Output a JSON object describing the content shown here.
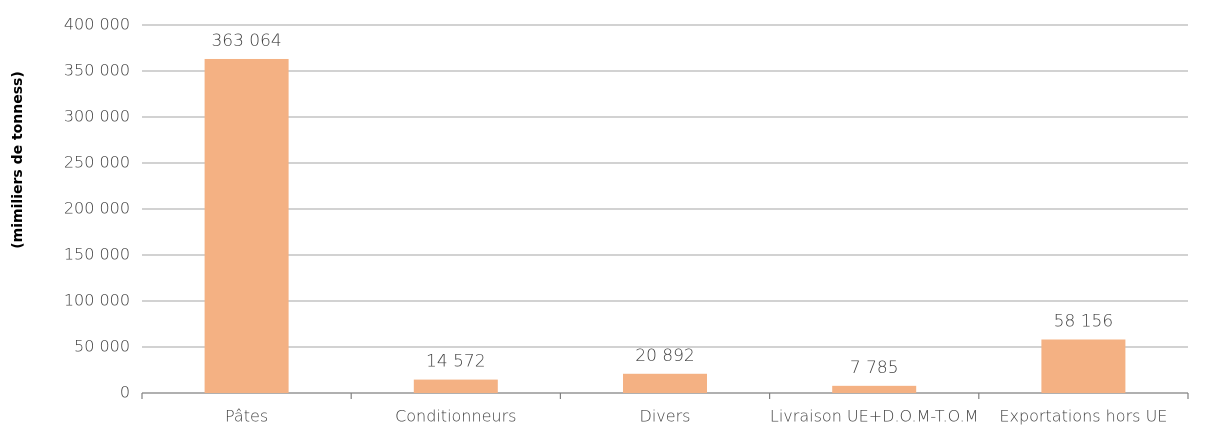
{
  "chart_data": {
    "type": "bar",
    "y_axis_label": "(mimiliers de tonness)",
    "categories": [
      "Pâtes",
      "Conditionneurs",
      "Divers",
      "Livraison UE+D.O.M-T.O.M",
      "Exportations hors UE"
    ],
    "values": [
      363064,
      14572,
      20892,
      7785,
      58156
    ],
    "value_labels": [
      "363 064",
      "14 572",
      "20 892",
      "7 785",
      "58 156"
    ],
    "color": "#f4b183",
    "ylim": [
      0,
      400000
    ],
    "yticks": [
      0,
      {
        "value": 50000,
        "label": "50 000"
      },
      {
        "value": 100000,
        "label": "100 000"
      },
      {
        "value": 150000,
        "label": "150 000"
      },
      {
        "value": 200000,
        "label": "200 000"
      },
      {
        "value": 250000,
        "label": "250 000"
      },
      {
        "value": 300000,
        "label": "300 000"
      },
      {
        "value": 350000,
        "label": "350 000"
      },
      {
        "value": 400000,
        "label": "400 000"
      }
    ],
    "grid": true
  }
}
